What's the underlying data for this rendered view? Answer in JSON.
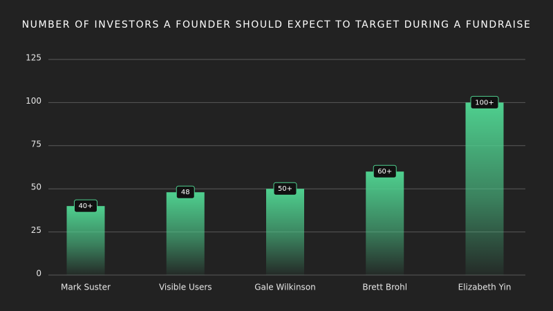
{
  "chart_data": {
    "type": "bar",
    "title": "NUMBER OF INVESTORS A FOUNDER SHOULD EXPECT TO TARGET DURING A FUNDRAISE",
    "categories": [
      "Mark Suster",
      "Visible Users",
      "Gale Wilkinson",
      "Brett Brohl",
      "Elizabeth Yin"
    ],
    "values": [
      40,
      48,
      50,
      60,
      100
    ],
    "value_labels": [
      "40+",
      "48",
      "50+",
      "60+",
      "100+"
    ],
    "color": "#4fd08f",
    "ylim": [
      0,
      125
    ],
    "yticks": [
      0,
      25,
      50,
      75,
      100,
      125
    ],
    "grid": true
  }
}
